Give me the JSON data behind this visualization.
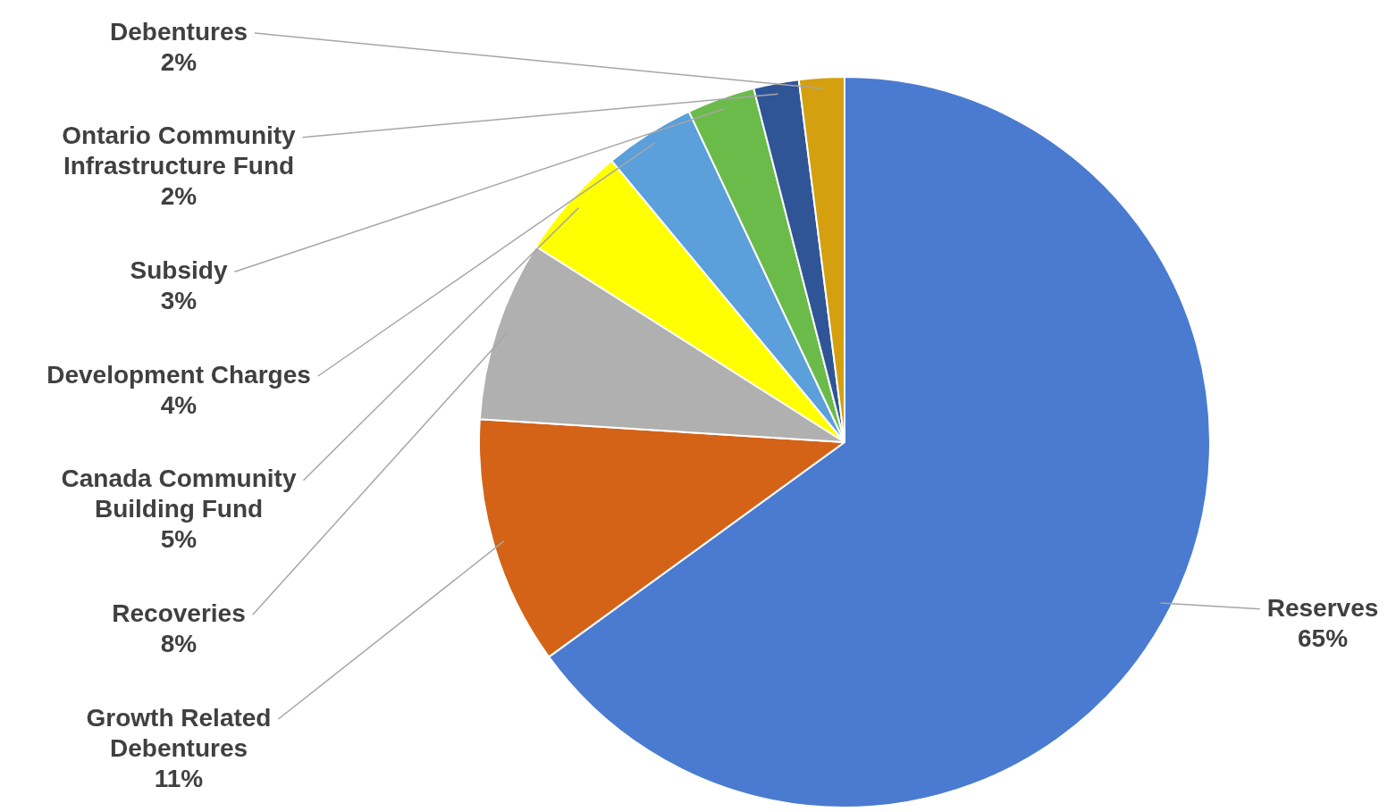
{
  "chart_data": {
    "type": "pie",
    "categories": [
      "Reserves",
      "Growth Related Debentures",
      "Recoveries",
      "Canada Community Building Fund",
      "Development Charges",
      "Subsidy",
      "Ontario Community Infrastructure Fund",
      "Debentures"
    ],
    "values": [
      65,
      11,
      8,
      5,
      4,
      3,
      2,
      2
    ],
    "value_labels": [
      "65%",
      "11%",
      "8%",
      "5%",
      "4%",
      "3%",
      "2%",
      "2%"
    ],
    "colors": [
      "#4a7bd0",
      "#d46318",
      "#b0b0b0",
      "#ffff00",
      "#5b9fdb",
      "#6bbb4a",
      "#2f5597",
      "#d4a010"
    ]
  }
}
